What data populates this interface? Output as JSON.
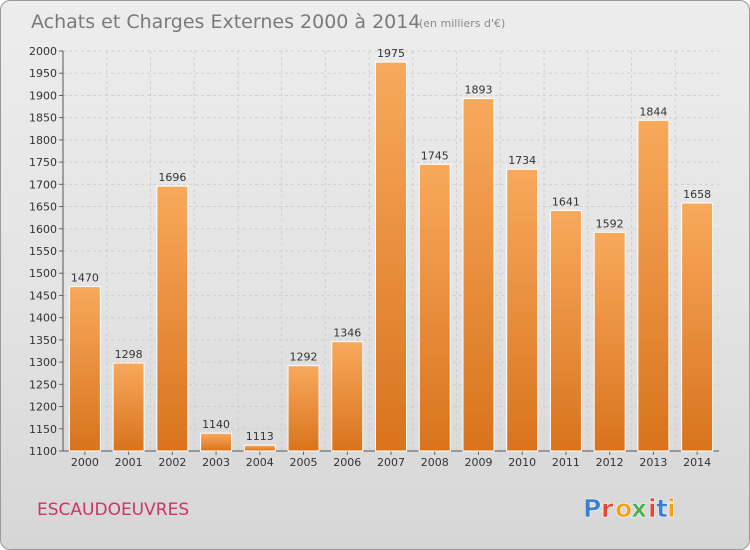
{
  "header": {
    "title": "Achats et Charges Externes 2000 à 2014",
    "unit": "(en milliers d'€)"
  },
  "footer": {
    "commune": "ESCAUDOEUVRES",
    "logo_text": "Proxiti"
  },
  "colors": {
    "bar_light": "#f8a95c",
    "bar_dark": "#d9731c",
    "commune_text": "#cc3366",
    "logo_letters": [
      "#3a7fd0",
      "#e8443a",
      "#f0a21c",
      "#4caf50",
      "#e8443a",
      "#3a7fd0",
      "#f0a21c"
    ]
  },
  "chart_data": {
    "type": "bar",
    "title": "Achats et Charges Externes 2000 à 2014",
    "subtitle": "(en milliers d'€)",
    "xlabel": "",
    "ylabel": "",
    "categories": [
      "2000",
      "2001",
      "2002",
      "2003",
      "2004",
      "2005",
      "2006",
      "2007",
      "2008",
      "2009",
      "2010",
      "2011",
      "2012",
      "2013",
      "2014"
    ],
    "values": [
      1470,
      1298,
      1696,
      1140,
      1113,
      1292,
      1346,
      1975,
      1745,
      1893,
      1734,
      1641,
      1592,
      1844,
      1658
    ],
    "ylim": [
      1100,
      2000
    ],
    "yticks": [
      1100,
      1150,
      1200,
      1250,
      1300,
      1350,
      1400,
      1450,
      1500,
      1550,
      1600,
      1650,
      1700,
      1750,
      1800,
      1850,
      1900,
      1950,
      2000
    ],
    "grid": true,
    "data_labels": true
  }
}
